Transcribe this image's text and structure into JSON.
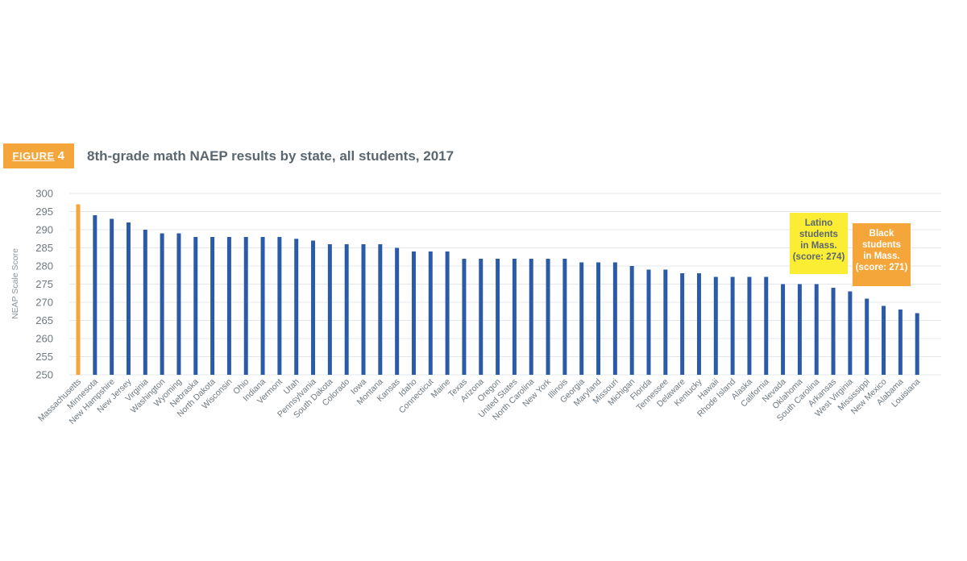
{
  "figure_label": {
    "word": "FIGURE",
    "number": "4"
  },
  "colors": {
    "bar": "#2b5ba7",
    "highlight": "#f5a63a",
    "badge": "#f5a63a",
    "latino_box": "#fbec34",
    "black_box": "#f5a63a",
    "grid": "#e3e7ea",
    "text": "#6d7880"
  },
  "chart_data": {
    "type": "bar",
    "title": "8th-grade math NAEP results by state, all students, 2017",
    "ylabel": "NEAP Scale Score",
    "xlabel": "",
    "ylim": [
      250,
      300
    ],
    "yticks": [
      300,
      295,
      290,
      285,
      280,
      275,
      270,
      265,
      260,
      255,
      250
    ],
    "grid": true,
    "categories": [
      "Massachusetts",
      "Minnesota",
      "New Hampshire",
      "New Jersey",
      "Virginia",
      "Washington",
      "Wyoming",
      "Nebraska",
      "North Dakota",
      "Wisconsin",
      "Ohio",
      "Indiana",
      "Vermont",
      "Utah",
      "Pennsylvania",
      "South Dakota",
      "Colorado",
      "Iowa",
      "Montana",
      "Kansas",
      "Idaho",
      "Connecticut",
      "Maine",
      "Texas",
      "Arizona",
      "Oregon",
      "United States",
      "North Carolina",
      "New York",
      "Illinois",
      "Georgia",
      "Maryland",
      "Missouri",
      "Michigan",
      "Florida",
      "Tennessee",
      "Delaware",
      "Kentucky",
      "Hawaii",
      "Rhode Island",
      "Alaska",
      "California",
      "Nevada",
      "Oklahoma",
      "South Carolina",
      "Arkansas",
      "West Virginia",
      "Mississippi",
      "New Mexico",
      "Alabama",
      "Louisiana"
    ],
    "values": [
      297,
      294,
      293,
      292,
      290,
      289,
      289,
      288,
      288,
      288,
      288,
      288,
      288,
      287.5,
      287,
      286,
      286,
      286,
      286,
      285,
      284,
      284,
      284,
      282,
      282,
      282,
      282,
      282,
      282,
      282,
      281,
      281,
      281,
      280,
      279,
      279,
      278,
      278,
      277,
      277,
      277,
      277,
      275,
      275,
      275,
      274,
      273,
      271,
      269,
      268,
      267
    ],
    "highlight_category": "Massachusetts",
    "annotations": [
      {
        "lines": [
          "Latino",
          "students",
          "in Mass.",
          "(score: 274)"
        ],
        "color_key": "latino_box"
      },
      {
        "lines": [
          "Black",
          "students",
          "in Mass.",
          "(score: 271)"
        ],
        "color_key": "black_box"
      }
    ]
  }
}
